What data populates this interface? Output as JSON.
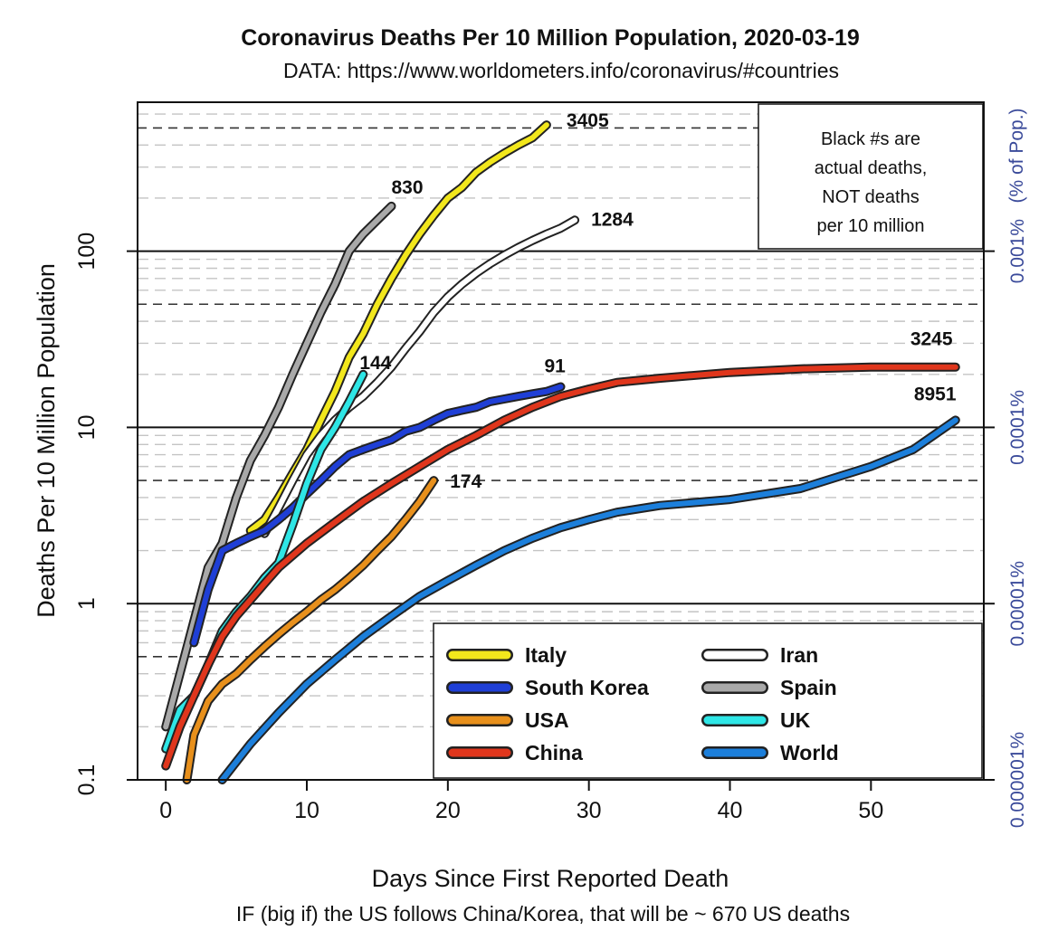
{
  "chart_data": {
    "type": "line",
    "title": "Coronavirus Deaths Per 10 Million Population, 2020-03-19",
    "subtitle": "DATA: https://www.worldometers.info/coronavirus/#countries",
    "xlabel": "Days Since First Reported Death",
    "ylabel": "Deaths Per 10 Million Population",
    "right_axis_label": "(% of Pop.)",
    "caption": "IF (big if) the US follows China/Korea, that will be ~ 670 US deaths",
    "note": [
      "Black #s are",
      "actual deaths,",
      "NOT deaths",
      "per 10 million"
    ],
    "y_scale": "log",
    "ylim": [
      0.1,
      700
    ],
    "xlim": [
      -2,
      58
    ],
    "x_ticks": [
      0,
      10,
      20,
      30,
      40,
      50
    ],
    "x_tick_labels": [
      "0",
      "10",
      "20",
      "30",
      "40",
      "50"
    ],
    "y_ticks": [
      0.1,
      1,
      10,
      100
    ],
    "y_tick_labels": [
      "0.1",
      "1",
      "10",
      "100"
    ],
    "right_ticks": [
      {
        "y": 100,
        "label": "0.001%"
      },
      {
        "y": 10,
        "label": "0.0001%"
      },
      {
        "y": 1,
        "label": "0.00001%"
      },
      {
        "y": 0.1,
        "label": "0.000001%"
      }
    ],
    "legend_position": "bottom-right",
    "series": [
      {
        "name": "Spain",
        "color": "#a9a9a9",
        "label": "830",
        "label_dx": 0,
        "label_dy": -14,
        "points": [
          [
            0,
            0.2
          ],
          [
            1,
            0.4
          ],
          [
            2,
            0.8
          ],
          [
            3,
            1.6
          ],
          [
            4,
            2.2
          ],
          [
            5,
            4
          ],
          [
            6,
            6.5
          ],
          [
            7,
            9
          ],
          [
            8,
            13
          ],
          [
            9,
            20
          ],
          [
            10,
            30
          ],
          [
            11,
            45
          ],
          [
            12,
            65
          ],
          [
            13,
            100
          ],
          [
            14,
            125
          ],
          [
            15,
            150
          ],
          [
            16,
            180
          ]
        ]
      },
      {
        "name": "Italy",
        "color": "#f2e71c",
        "label": "3405",
        "label_dx": 22,
        "label_dy": 2,
        "points": [
          [
            6,
            2.6
          ],
          [
            7,
            3
          ],
          [
            8,
            4
          ],
          [
            9,
            5.5
          ],
          [
            10,
            7.5
          ],
          [
            11,
            11
          ],
          [
            12,
            16
          ],
          [
            13,
            25
          ],
          [
            14,
            34
          ],
          [
            15,
            50
          ],
          [
            16,
            70
          ],
          [
            17,
            95
          ],
          [
            18,
            125
          ],
          [
            19,
            160
          ],
          [
            20,
            200
          ],
          [
            21,
            230
          ],
          [
            22,
            280
          ],
          [
            23,
            320
          ],
          [
            24,
            360
          ],
          [
            25,
            400
          ],
          [
            26,
            440
          ],
          [
            27,
            520
          ]
        ]
      },
      {
        "name": "Iran",
        "color": "#ffffff",
        "label": "1284",
        "label_dx": 18,
        "label_dy": 6,
        "points": [
          [
            7,
            2.5
          ],
          [
            8,
            3.5
          ],
          [
            9,
            5
          ],
          [
            10,
            7
          ],
          [
            11,
            9
          ],
          [
            12,
            11
          ],
          [
            13,
            13
          ],
          [
            14,
            15
          ],
          [
            15,
            18
          ],
          [
            16,
            22
          ],
          [
            17,
            28
          ],
          [
            18,
            35
          ],
          [
            19,
            45
          ],
          [
            20,
            55
          ],
          [
            21,
            65
          ],
          [
            22,
            75
          ],
          [
            23,
            85
          ],
          [
            24,
            95
          ],
          [
            25,
            105
          ],
          [
            26,
            115
          ],
          [
            27,
            125
          ],
          [
            28,
            135
          ],
          [
            29,
            150
          ]
        ]
      },
      {
        "name": "South Korea",
        "color": "#1f3fd6",
        "label": "91",
        "label_dx": -18,
        "label_dy": -16,
        "points": [
          [
            2,
            0.6
          ],
          [
            3,
            1.2
          ],
          [
            4,
            2
          ],
          [
            5,
            2.2
          ],
          [
            6,
            2.4
          ],
          [
            7,
            2.6
          ],
          [
            8,
            3
          ],
          [
            9,
            3.5
          ],
          [
            10,
            4.2
          ],
          [
            11,
            5
          ],
          [
            12,
            6
          ],
          [
            13,
            7
          ],
          [
            14,
            7.5
          ],
          [
            15,
            8
          ],
          [
            16,
            8.5
          ],
          [
            17,
            9.5
          ],
          [
            18,
            10
          ],
          [
            19,
            11
          ],
          [
            20,
            12
          ],
          [
            21,
            12.5
          ],
          [
            22,
            13
          ],
          [
            23,
            14
          ],
          [
            24,
            14.5
          ],
          [
            25,
            15
          ],
          [
            26,
            15.5
          ],
          [
            27,
            16
          ],
          [
            28,
            17
          ]
        ]
      },
      {
        "name": "UK",
        "color": "#2ee6e6",
        "label": "144",
        "label_dx": -4,
        "label_dy": -6,
        "points": [
          [
            0,
            0.15
          ],
          [
            1,
            0.25
          ],
          [
            2,
            0.3
          ],
          [
            3,
            0.45
          ],
          [
            4,
            0.7
          ],
          [
            5,
            0.9
          ],
          [
            6,
            1.1
          ],
          [
            7,
            1.4
          ],
          [
            8,
            1.7
          ],
          [
            9,
            2.8
          ],
          [
            10,
            4.8
          ],
          [
            11,
            7.5
          ],
          [
            12,
            10
          ],
          [
            13,
            14
          ],
          [
            14,
            20
          ]
        ]
      },
      {
        "name": "USA",
        "color": "#e8901c",
        "label": "174",
        "label_dx": 18,
        "label_dy": 8,
        "points": [
          [
            1.5,
            0.1
          ],
          [
            2,
            0.18
          ],
          [
            3,
            0.28
          ],
          [
            4,
            0.35
          ],
          [
            5,
            0.4
          ],
          [
            6,
            0.48
          ],
          [
            7,
            0.57
          ],
          [
            8,
            0.67
          ],
          [
            9,
            0.78
          ],
          [
            10,
            0.9
          ],
          [
            11,
            1.05
          ],
          [
            12,
            1.2
          ],
          [
            13,
            1.4
          ],
          [
            14,
            1.65
          ],
          [
            15,
            2
          ],
          [
            16,
            2.4
          ],
          [
            17,
            3
          ],
          [
            18,
            3.8
          ],
          [
            19,
            5
          ]
        ]
      },
      {
        "name": "China",
        "color": "#e0361c",
        "label": "3245",
        "label_dx": -50,
        "label_dy": -24,
        "points": [
          [
            0,
            0.12
          ],
          [
            1,
            0.2
          ],
          [
            2,
            0.3
          ],
          [
            3,
            0.45
          ],
          [
            4,
            0.65
          ],
          [
            5,
            0.85
          ],
          [
            6,
            1.05
          ],
          [
            7,
            1.3
          ],
          [
            8,
            1.6
          ],
          [
            10,
            2.2
          ],
          [
            12,
            2.9
          ],
          [
            14,
            3.8
          ],
          [
            16,
            4.8
          ],
          [
            18,
            6
          ],
          [
            20,
            7.5
          ],
          [
            22,
            9
          ],
          [
            24,
            11
          ],
          [
            26,
            13
          ],
          [
            28,
            15
          ],
          [
            30,
            16.5
          ],
          [
            32,
            18
          ],
          [
            35,
            19
          ],
          [
            40,
            20.5
          ],
          [
            45,
            21.5
          ],
          [
            50,
            22
          ],
          [
            56,
            22
          ]
        ]
      },
      {
        "name": "World",
        "color": "#1c7fdb",
        "label": "8951",
        "label_dx": -46,
        "label_dy": -22,
        "points": [
          [
            4,
            0.1
          ],
          [
            6,
            0.16
          ],
          [
            8,
            0.24
          ],
          [
            10,
            0.35
          ],
          [
            12,
            0.48
          ],
          [
            14,
            0.65
          ],
          [
            16,
            0.85
          ],
          [
            18,
            1.1
          ],
          [
            20,
            1.35
          ],
          [
            22,
            1.65
          ],
          [
            24,
            2
          ],
          [
            26,
            2.35
          ],
          [
            28,
            2.7
          ],
          [
            30,
            3
          ],
          [
            32,
            3.3
          ],
          [
            35,
            3.6
          ],
          [
            40,
            3.9
          ],
          [
            45,
            4.5
          ],
          [
            50,
            6
          ],
          [
            53,
            7.5
          ],
          [
            56,
            11
          ]
        ]
      }
    ],
    "legend_layout": [
      [
        "Italy",
        "Iran"
      ],
      [
        "South Korea",
        "Spain"
      ],
      [
        "USA",
        "UK"
      ],
      [
        "China",
        "World"
      ]
    ]
  }
}
